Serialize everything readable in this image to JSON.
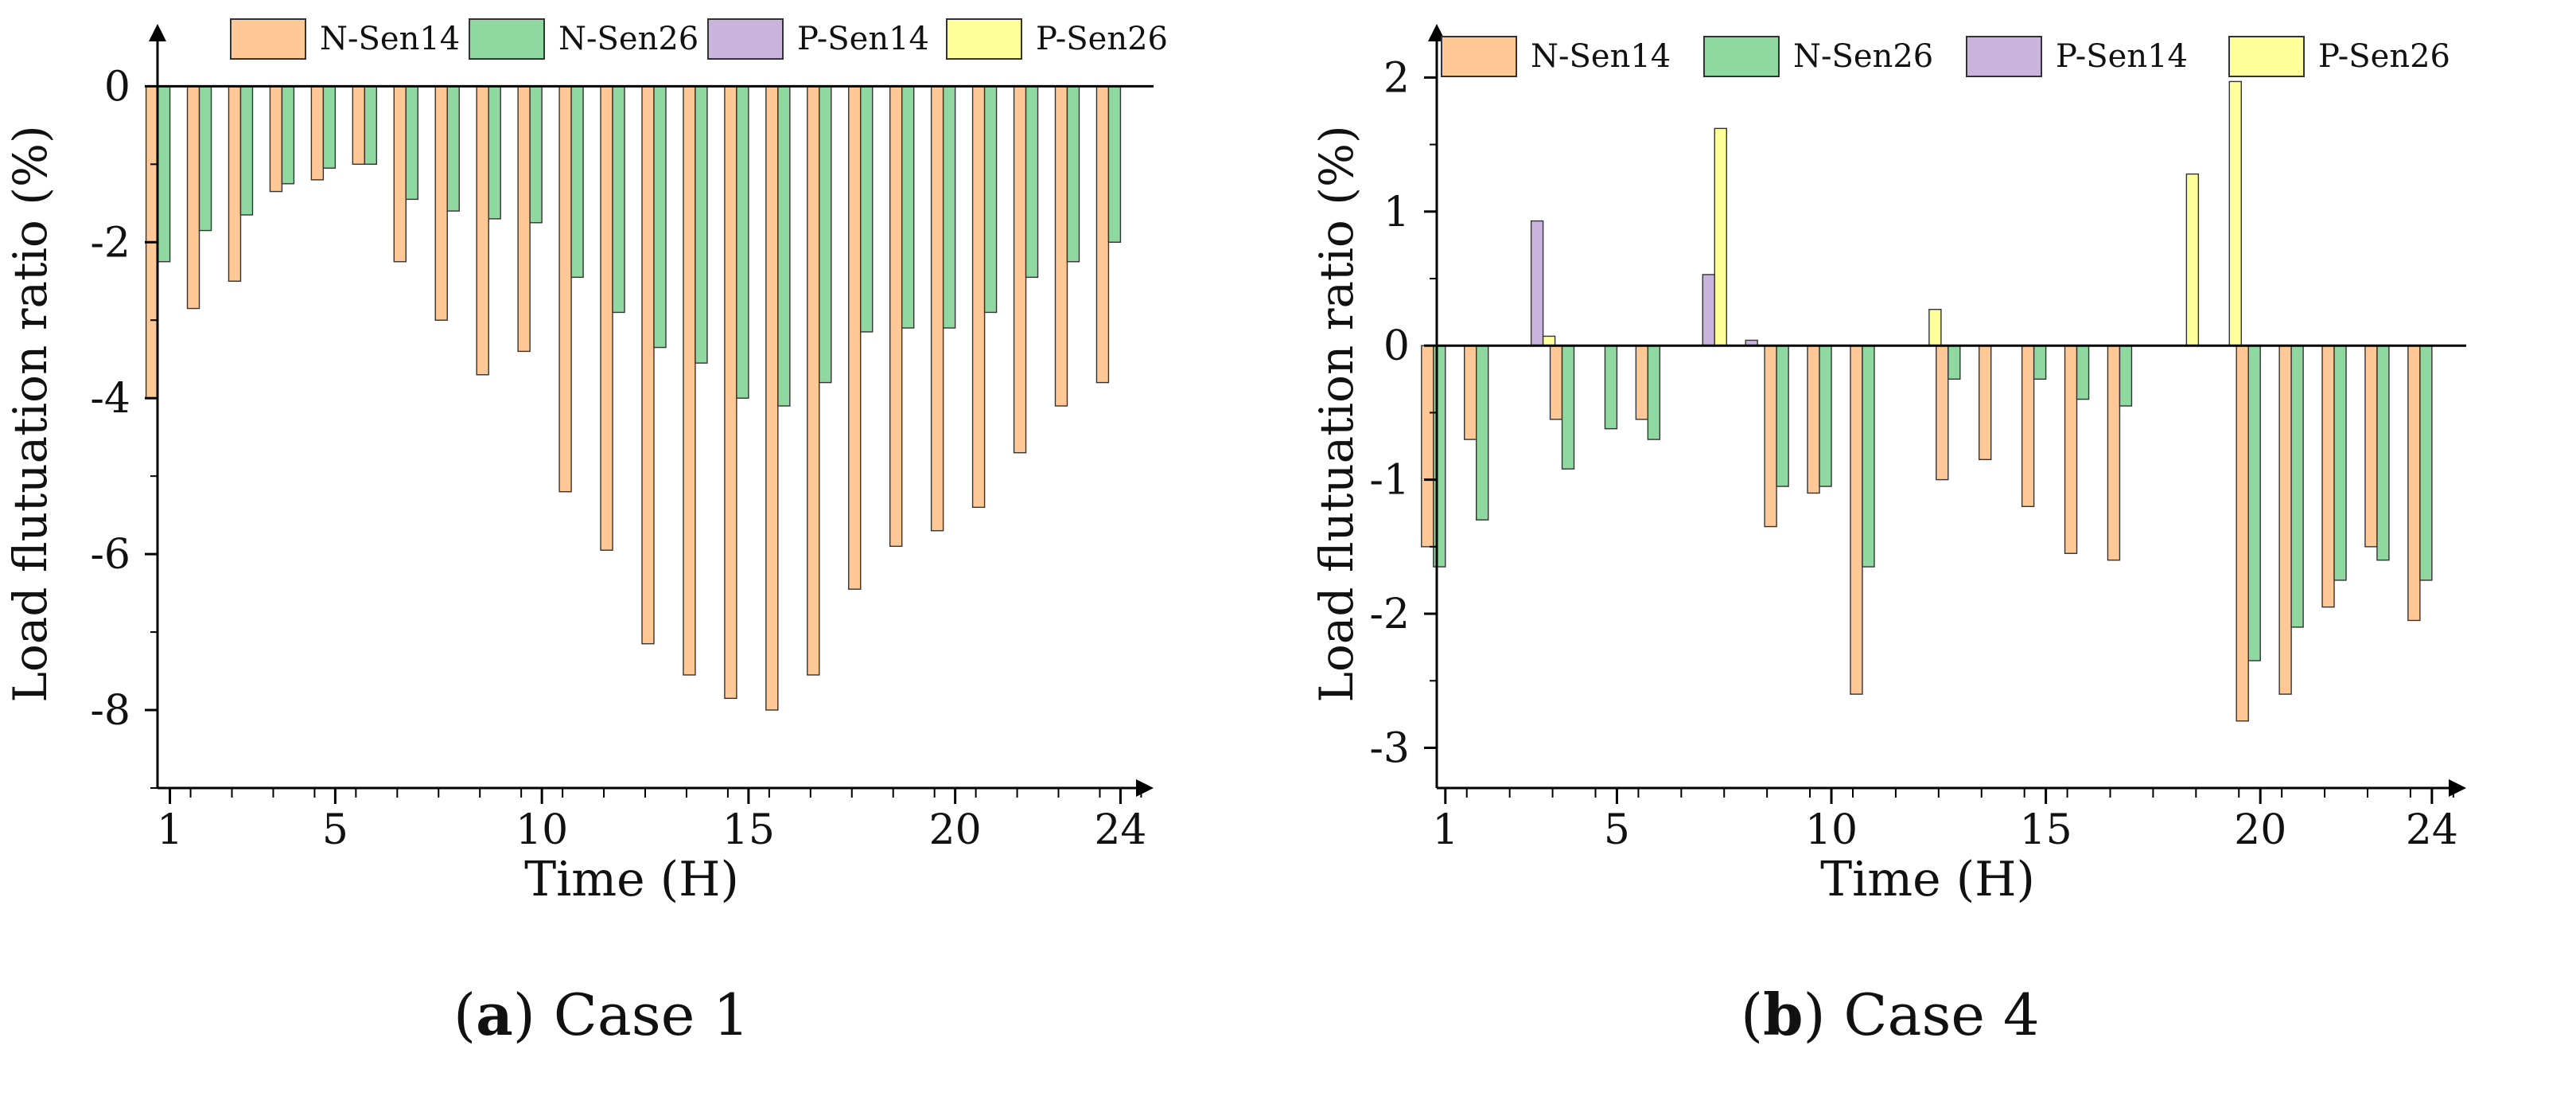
{
  "chart_data": [
    {
      "type": "bar",
      "panel_label": "a",
      "caption": "Case 1",
      "xlabel": "Time (H)",
      "ylabel": "Load flutuation ratio (%)",
      "ylim": [
        -9,
        0.8
      ],
      "yticks": [
        0,
        -2,
        -4,
        -6,
        -8
      ],
      "ytick_labels": [
        "0",
        "-2",
        "-4",
        "-6",
        "-8"
      ],
      "xlim": [
        0.7,
        24.8
      ],
      "xticks": [
        1,
        5,
        10,
        15,
        20,
        24
      ],
      "xtick_labels": [
        "1",
        "5",
        "10",
        "15",
        "20",
        "24"
      ],
      "legend_position": "top",
      "categories": [
        1,
        2,
        3,
        4,
        5,
        6,
        7,
        8,
        9,
        10,
        11,
        12,
        13,
        14,
        15,
        16,
        17,
        18,
        19,
        20,
        21,
        22,
        23,
        24
      ],
      "series": [
        {
          "name": "N-Sen14",
          "color": "#FFC896",
          "values": [
            -4.0,
            -2.85,
            -2.5,
            -1.35,
            -1.2,
            -1.0,
            -2.25,
            -3.0,
            -3.7,
            -3.4,
            -5.2,
            -5.95,
            -7.15,
            -7.55,
            -7.85,
            -8.0,
            -7.55,
            -6.45,
            -5.9,
            -5.7,
            -5.4,
            -4.7,
            -4.1,
            -3.8
          ]
        },
        {
          "name": "N-Sen26",
          "color": "#8FD8A0",
          "values": [
            -2.25,
            -1.85,
            -1.65,
            -1.25,
            -1.05,
            -1.0,
            -1.45,
            -1.6,
            -1.7,
            -1.75,
            -2.45,
            -2.9,
            -3.35,
            -3.55,
            -4.0,
            -4.1,
            -3.8,
            -3.15,
            -3.1,
            -3.1,
            -2.9,
            -2.45,
            -2.25,
            -2.0
          ]
        },
        {
          "name": "P-Sen14",
          "color": "#C8B4DC",
          "values": [
            0,
            0,
            0,
            0,
            0,
            0,
            0,
            0,
            0,
            0,
            0,
            0,
            0,
            0,
            0,
            0,
            0,
            0,
            0,
            0,
            0,
            0,
            0,
            0
          ]
        },
        {
          "name": "P-Sen26",
          "color": "#FFFF9C",
          "values": [
            0,
            0,
            0,
            0,
            0,
            0,
            0,
            0,
            0,
            0,
            0,
            0,
            0,
            0,
            0,
            0,
            0,
            0,
            0,
            0,
            0,
            0,
            0,
            0
          ]
        }
      ]
    },
    {
      "type": "bar",
      "panel_label": "b",
      "caption": "Case 4",
      "xlabel": "Time (H)",
      "ylabel": "Load flutuation ratio (%)",
      "ylim": [
        -3.3,
        2.4
      ],
      "yticks": [
        2,
        1,
        0,
        -1,
        -2,
        -3
      ],
      "ytick_labels": [
        "2",
        "1",
        "0",
        "-1",
        "-2",
        "-3"
      ],
      "xlim": [
        0.8,
        24.8
      ],
      "xticks": [
        1,
        5,
        10,
        15,
        20,
        24
      ],
      "xtick_labels": [
        "1",
        "5",
        "10",
        "15",
        "20",
        "24"
      ],
      "legend_position": "top",
      "categories": [
        1,
        2,
        3,
        4,
        5,
        6,
        7,
        8,
        9,
        10,
        11,
        12,
        13,
        14,
        15,
        16,
        17,
        18,
        19,
        20,
        21,
        22,
        23,
        24
      ],
      "series": [
        {
          "name": "N-Sen14",
          "color": "#FFC896",
          "values": [
            -1.5,
            -0.7,
            0,
            -0.55,
            0,
            -0.55,
            0,
            0,
            -1.35,
            -1.1,
            -2.6,
            0,
            -1.0,
            -0.85,
            -1.2,
            -1.55,
            -1.6,
            0,
            0,
            -2.8,
            -2.6,
            -1.95,
            -1.5,
            -2.05
          ]
        },
        {
          "name": "N-Sen26",
          "color": "#8FD8A0",
          "values": [
            -1.65,
            -1.3,
            0,
            -0.92,
            -0.62,
            -0.7,
            0,
            0,
            -1.05,
            -1.05,
            -1.65,
            0,
            -0.25,
            0,
            -0.25,
            -0.4,
            -0.45,
            0,
            0,
            -2.35,
            -2.1,
            -1.75,
            -1.6,
            -1.75
          ]
        },
        {
          "name": "P-Sen14",
          "color": "#C8B4DC",
          "values": [
            0,
            0,
            0.93,
            0,
            0,
            0,
            0.53,
            0.04,
            0,
            0,
            0,
            0,
            0,
            0,
            0,
            0,
            0,
            0,
            0,
            0,
            0,
            0,
            0,
            0
          ]
        },
        {
          "name": "P-Sen26",
          "color": "#FFFF9C",
          "values": [
            0,
            0,
            0.07,
            0,
            0,
            0,
            1.62,
            0,
            0,
            0,
            0,
            0.27,
            0,
            0,
            0,
            0,
            0,
            1.28,
            1.97,
            0,
            0,
            0,
            0,
            0
          ]
        }
      ]
    }
  ]
}
